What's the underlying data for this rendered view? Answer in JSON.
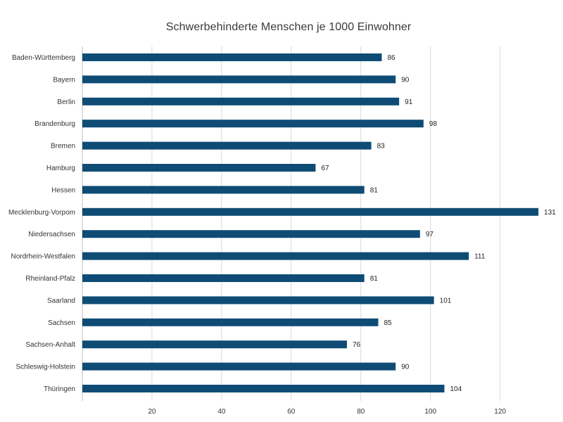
{
  "chart_data": {
    "type": "bar",
    "orientation": "horizontal",
    "title": "Schwerbehinderte Menschen je 1000 Einwohner",
    "categories": [
      "Baden-Württemberg",
      "Bayern",
      "Berlin",
      "Brandenburg",
      "Bremen",
      "Hamburg",
      "Hessen",
      "Mecklenburg-Vorpom",
      "Niedersachsen",
      "Nordrhein-Westfalen",
      "Rheinland-Pfalz",
      "Saarland",
      "Sachsen",
      "Sachsen-Anhalt",
      "Schleswig-Holstein",
      "Thüringen"
    ],
    "values": [
      86,
      90,
      91,
      98,
      83,
      67,
      81,
      131,
      97,
      111,
      81,
      101,
      85,
      76,
      90,
      104
    ],
    "xlim": [
      0,
      132
    ],
    "xticks": [
      20,
      40,
      60,
      80,
      100,
      120
    ],
    "xlabel": "",
    "ylabel": "",
    "grid": true,
    "data_labels": true,
    "bar_color": "#0f4c75"
  }
}
